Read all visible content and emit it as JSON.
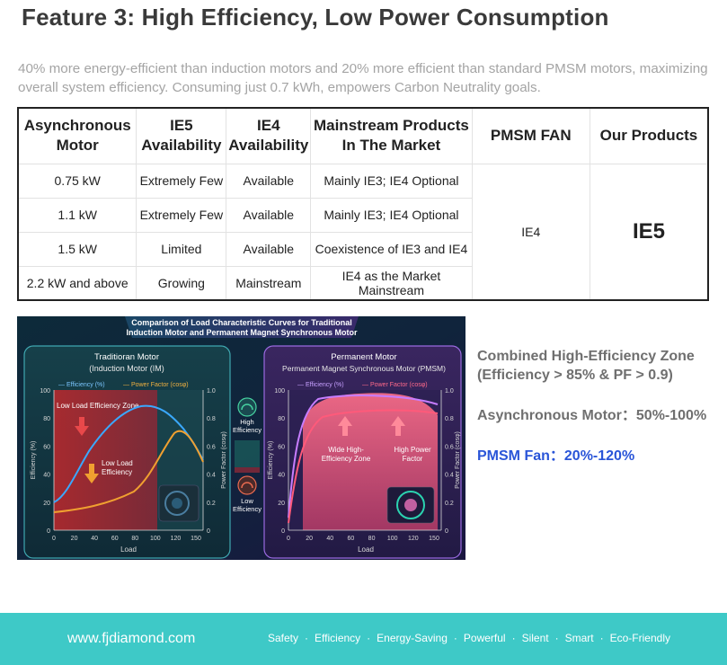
{
  "title": "Feature 3: High Efficiency, Low Power Consumption",
  "subtitle": "40% more energy-efficient than induction motors and 20% more efficient than standard PMSM motors, maximizing overall system efficiency. Consuming just 0.7 kWh, empowers Carbon Neutrality goals.",
  "table": {
    "headers": {
      "motor": "Asynchronous Motor",
      "ie5": "IE5 Availability",
      "ie4": "IE4 Availability",
      "mainstream": "Mainstream Products In The Market",
      "pmsm": "PMSM FAN",
      "ours": "Our Products"
    },
    "rows": [
      {
        "motor": "0.75 kW",
        "ie5": "Extremely Few",
        "ie4": "Available",
        "mainstream": "Mainly IE3; IE4 Optional"
      },
      {
        "motor": "1.1 kW",
        "ie5": "Extremely Few",
        "ie4": "Available",
        "mainstream": "Mainly IE3; IE4 Optional"
      },
      {
        "motor": "1.5 kW",
        "ie5": "Limited",
        "ie4": "Available",
        "mainstream": "Coexistence of IE3 and IE4"
      },
      {
        "motor": "2.2 kW and above",
        "ie5": "Growing",
        "ie4": "Mainstream",
        "mainstream": "IE4 as the Market Mainstream"
      }
    ],
    "pmsm_value": "IE4",
    "ours_value": "IE5"
  },
  "graphic": {
    "heading_line1": "Comparison of Load Characteristic Curves for Traditional",
    "heading_line2": "Induction Motor and Permanent Magnet Synchronous Motor",
    "left": {
      "title": "Traditioran Motor",
      "subtitle": "(Induction Motor (IM)",
      "legend_eff": "— Efficiency (%)",
      "legend_pf": "— Power Factor (cosφ)",
      "zone_label": "Low Load Efficiency Zone",
      "low_label_1": "Low Load",
      "low_label_2": "Efficiency",
      "y_label": "Efficiency (%)",
      "y2_label": "Power Factor (cosφ)",
      "x_label": "Load",
      "y_ticks": [
        "100",
        "80",
        "60",
        "40",
        "20",
        "0"
      ],
      "y2_ticks": [
        "1.0",
        "0.8",
        "0.6",
        "0.4",
        "0.2",
        "0"
      ],
      "x_ticks": [
        "0",
        "20",
        "40",
        "60",
        "80",
        "100",
        "120",
        "150"
      ]
    },
    "middle": {
      "high_1": "High",
      "high_2": "Efficiency",
      "low_1": "Low",
      "low_2": "Efficiency"
    },
    "right": {
      "title": "Permanent Motor",
      "subtitle": "Permanent Magnet Synchronous Motor (PMSM)",
      "legend_eff": "— Efficiency (%)",
      "legend_pf": "— Power Factor (cosφ)",
      "zone_1": "Wide High-",
      "zone_2": "Efficiency Zone",
      "pf_1": "High Power",
      "pf_2": "Factor",
      "y_label": "Efficiency (%)",
      "y2_label": "Power Factor (cosφ)",
      "x_label": "Load",
      "y_ticks": [
        "100",
        "80",
        "60",
        "40",
        "20",
        "0"
      ],
      "y2_ticks": [
        "1.0",
        "0.8",
        "0.6",
        "0.4",
        "0.2",
        "0"
      ],
      "x_ticks": [
        "0",
        "20",
        "40",
        "60",
        "80",
        "100",
        "120",
        "150"
      ]
    }
  },
  "zone": {
    "line1": "Combined High-Efficiency Zone",
    "line2": "(Efficiency > 85% & PF > 0.9)",
    "async": "Asynchronous Motor：50%-100%",
    "pmsm": "PMSM Fan：20%-120%"
  },
  "footer": {
    "site": "www.fjdiamond.com",
    "tags": [
      "Safety",
      "Efficiency",
      "Energy-Saving",
      "Powerful",
      "Silent",
      "Smart",
      "Eco-Friendly"
    ],
    "separator": "·"
  },
  "colors": {
    "footer_bg": "#3ec9c7",
    "ie5_green": "#1db85a",
    "pmsm_blue": "#2a55d8",
    "efficiency_curve": "#3aa8ff",
    "power_factor_curve": "#f0a030",
    "pmsm_efficiency_curve": "#c77dff",
    "pmsm_power_factor_curve": "#ff5a7a"
  }
}
